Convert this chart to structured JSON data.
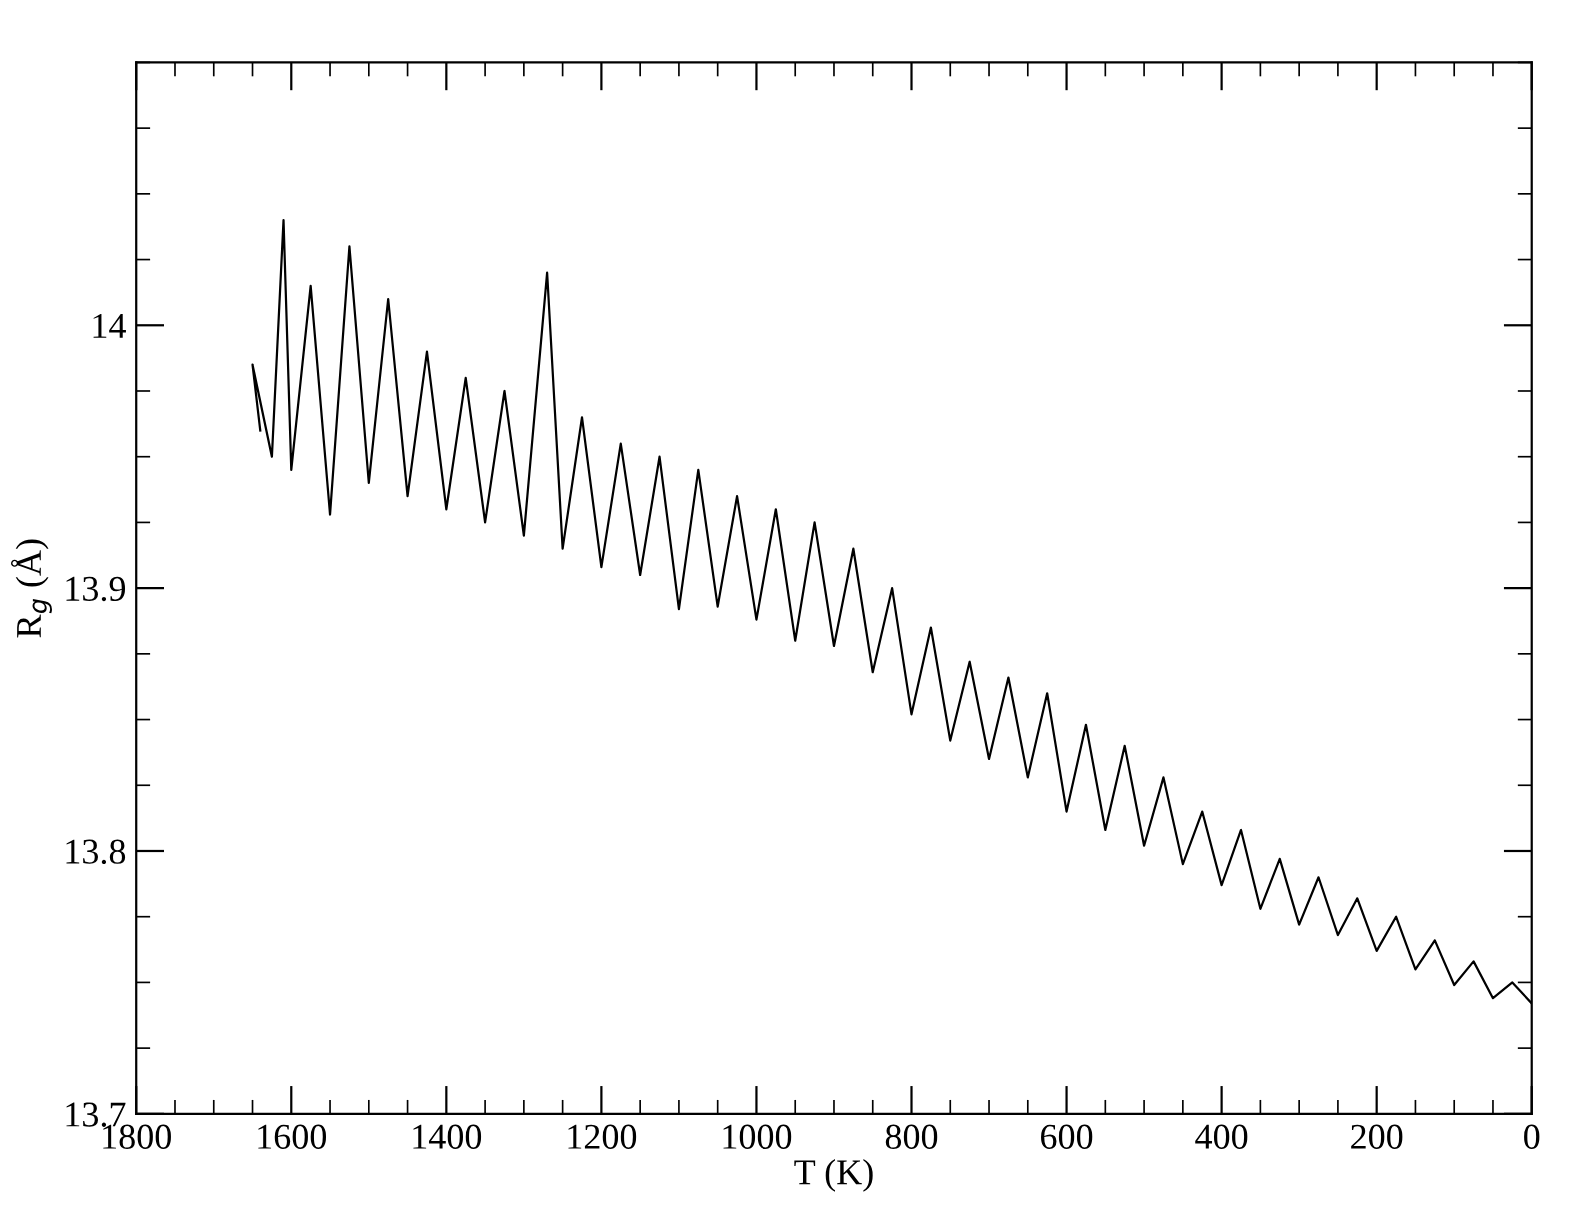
{
  "chart_data": {
    "type": "line",
    "xlabel": "T (K)",
    "ylabel": "R$_{g}$ (Å)",
    "xlim": [
      1800,
      0
    ],
    "ylim": [
      13.7,
      14.1
    ],
    "xticks": [
      1800,
      {
        "value": 1750,
        "label": null
      },
      {
        "value": 1700,
        "label": null
      },
      {
        "value": 1650,
        "label": null
      },
      1600,
      {
        "value": 1550,
        "label": null
      },
      {
        "value": 1500,
        "label": null
      },
      {
        "value": 1450,
        "label": null
      },
      1400,
      {
        "value": 1350,
        "label": null
      },
      {
        "value": 1300,
        "label": null
      },
      {
        "value": 1250,
        "label": null
      },
      1200,
      {
        "value": 1150,
        "label": null
      },
      {
        "value": 1100,
        "label": null
      },
      {
        "value": 1050,
        "label": null
      },
      1000,
      {
        "value": 950,
        "label": null
      },
      {
        "value": 900,
        "label": null
      },
      {
        "value": 850,
        "label": null
      },
      800,
      {
        "value": 750,
        "label": null
      },
      {
        "value": 700,
        "label": null
      },
      {
        "value": 650,
        "label": null
      },
      600,
      {
        "value": 550,
        "label": null
      },
      {
        "value": 500,
        "label": null
      },
      {
        "value": 450,
        "label": null
      },
      400,
      {
        "value": 350,
        "label": null
      },
      {
        "value": 300,
        "label": null
      },
      {
        "value": 250,
        "label": null
      },
      200,
      {
        "value": 150,
        "label": null
      },
      {
        "value": 100,
        "label": null
      },
      {
        "value": 50,
        "label": null
      },
      0
    ],
    "yticks": [
      13.7,
      {
        "value": 13.725,
        "label": null
      },
      {
        "value": 13.75,
        "label": null
      },
      {
        "value": 13.775,
        "label": null
      },
      13.8,
      {
        "value": 13.825,
        "label": null
      },
      {
        "value": 13.85,
        "label": null
      },
      {
        "value": 13.875,
        "label": null
      },
      13.9,
      {
        "value": 13.925,
        "label": null
      },
      {
        "value": 13.95,
        "label": null
      },
      {
        "value": 13.975,
        "label": null
      },
      14,
      {
        "value": 14.025,
        "label": null
      },
      {
        "value": 14.05,
        "label": null
      },
      {
        "value": 14.075,
        "label": null
      },
      {
        "value": 14.1,
        "label": null
      }
    ],
    "grid": false,
    "legend": false,
    "marker": "none",
    "line_style": "solid",
    "series": [
      {
        "color": "#000000",
        "x": [
          0,
          25,
          50,
          75,
          100,
          125,
          150,
          175,
          200,
          225,
          250,
          275,
          300,
          325,
          350,
          375,
          400,
          425,
          450,
          475,
          500,
          525,
          550,
          575,
          600,
          625,
          650,
          675,
          700,
          725,
          750,
          775,
          800,
          825,
          850,
          875,
          900,
          925,
          950,
          975,
          1000,
          1025,
          1050,
          1075,
          1100,
          1125,
          1150,
          1175,
          1200,
          1225,
          1250,
          1270,
          1300,
          1325,
          1350,
          1375,
          1400,
          1425,
          1450,
          1475,
          1500,
          1525,
          1550,
          1575,
          1600,
          1610,
          1625,
          1650,
          1640
        ],
        "values": [
          13.742,
          13.75,
          13.744,
          13.758,
          13.749,
          13.766,
          13.755,
          13.775,
          13.762,
          13.782,
          13.768,
          13.79,
          13.772,
          13.797,
          13.778,
          13.808,
          13.787,
          13.815,
          13.795,
          13.828,
          13.802,
          13.84,
          13.808,
          13.848,
          13.815,
          13.86,
          13.828,
          13.866,
          13.835,
          13.872,
          13.842,
          13.885,
          13.852,
          13.9,
          13.868,
          13.915,
          13.878,
          13.925,
          13.88,
          13.93,
          13.888,
          13.935,
          13.893,
          13.945,
          13.892,
          13.95,
          13.905,
          13.955,
          13.908,
          13.965,
          13.915,
          14.02,
          13.92,
          13.975,
          13.925,
          13.98,
          13.93,
          13.99,
          13.935,
          14.01,
          13.94,
          14.03,
          13.928,
          14.015,
          13.945,
          14.04,
          13.95,
          13.985,
          13.96
        ]
      }
    ]
  }
}
